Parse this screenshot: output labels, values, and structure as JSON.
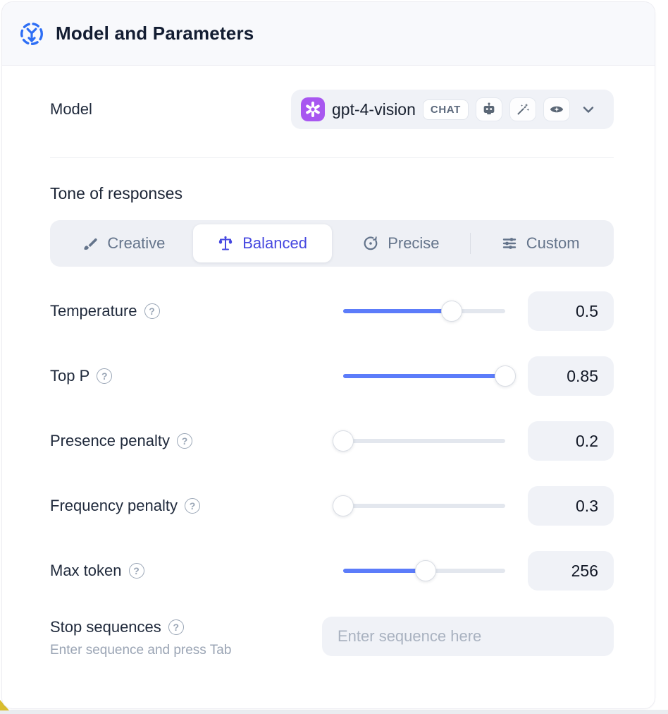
{
  "header": {
    "title": "Model and Parameters"
  },
  "model": {
    "label": "Model",
    "selected": {
      "name": "gpt-4-vision",
      "provider_icon": "openai-logo",
      "type_badge": "CHAT",
      "capability_icons": [
        "robot-icon",
        "magic-wand-icon",
        "vision-eye-icon"
      ]
    }
  },
  "tone": {
    "heading": "Tone of responses",
    "tabs": [
      {
        "label": "Creative",
        "icon": "paintbrush-icon",
        "active": false
      },
      {
        "label": "Balanced",
        "icon": "balance-scale-icon",
        "active": true
      },
      {
        "label": "Precise",
        "icon": "target-icon",
        "active": false
      },
      {
        "label": "Custom",
        "icon": "sliders-icon",
        "active": false
      }
    ]
  },
  "parameters": [
    {
      "label": "Temperature",
      "value": "0.5",
      "slider_percent": 67
    },
    {
      "label": "Top P",
      "value": "0.85",
      "slider_percent": 100
    },
    {
      "label": "Presence penalty",
      "value": "0.2",
      "slider_percent": 0
    },
    {
      "label": "Frequency penalty",
      "value": "0.3",
      "slider_percent": 0
    },
    {
      "label": "Max token",
      "value": "256",
      "slider_percent": 51
    }
  ],
  "stop_sequences": {
    "label": "Stop sequences",
    "helper": "Enter sequence and press Tab",
    "placeholder": "Enter sequence here"
  },
  "help_glyph": "?",
  "colors": {
    "header_accent_blue": "#2d6ef5",
    "active_tab_indigo": "#4547e0",
    "slider_blue": "#5c7cfa",
    "openai_purple": "#a857f0",
    "header_bg": "#f8f9fc",
    "field_bg": "#f0f2f7",
    "corner_yellow": "#d9bd2e"
  }
}
